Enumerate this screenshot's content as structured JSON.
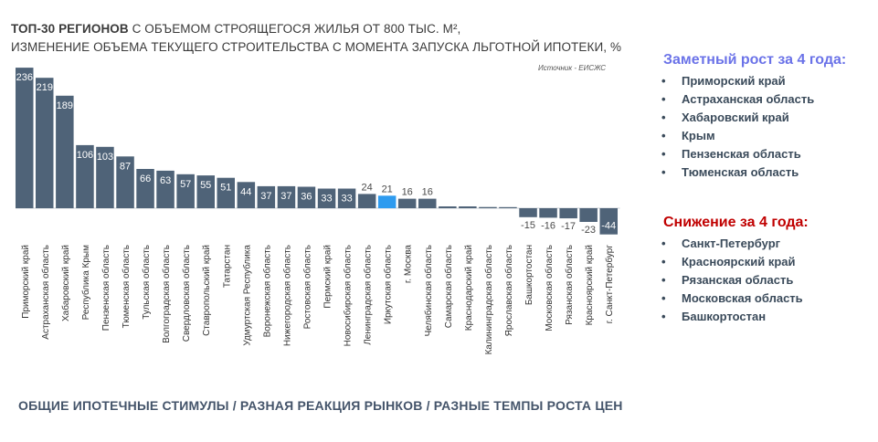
{
  "title": {
    "line1_bold": "ТОП-30 РЕГИОНОВ",
    "line1_rest": " С ОБЪЕМОМ СТРОЯЩЕГОСЯ ЖИЛЬЯ ОТ 800 ТЫС. М²,",
    "line2": "ИЗМЕНЕНИЕ ОБЪЕМА ТЕКУЩЕГО СТРОИТЕЛЬСТВА С МОМЕНТА ЗАПУСКА ЛЬГОТНОЙ ИПОТЕКИ, %"
  },
  "source": "Источник - ЕИСЖС",
  "chart_data": {
    "type": "bar",
    "categories": [
      "Приморский край",
      "Астраханская область",
      "Хабаровский край",
      "Республика Крым",
      "Пензенская область",
      "Тюменская область",
      "Тульская область",
      "Волгоградская область",
      "Свердловская область",
      "Ставропольский край",
      "Татарстан",
      "Удмуртская Республика",
      "Воронежская область",
      "Нижегородская область",
      "Ростовская область",
      "Пермский край",
      "Новосибирская область",
      "Ленинградская область",
      "Иркутская область",
      "г. Москва",
      "Челябинская область",
      "Самарская область",
      "Краснодарский край",
      "Калининградская область",
      "Ярославская область",
      "Башкортостан",
      "Московская область",
      "Рязанская область",
      "Красноярский край",
      "г. Санкт-Петербург"
    ],
    "values": [
      236,
      219,
      189,
      106,
      103,
      87,
      66,
      63,
      57,
      55,
      51,
      44,
      37,
      37,
      36,
      33,
      33,
      24,
      21,
      16,
      16,
      3,
      3,
      2,
      1,
      -15,
      -16,
      -17,
      -23,
      -44
    ],
    "labels": [
      "236",
      "219",
      "189",
      "106",
      "103",
      "87",
      "66",
      "63",
      "57",
      "55",
      "51",
      "44",
      "37",
      "37",
      "36",
      "33",
      "33",
      "24",
      "21",
      "16",
      "16",
      "",
      "",
      "",
      "",
      "-15",
      "-16",
      "-17",
      "-23",
      "-44"
    ],
    "highlight_index": 18,
    "colors": {
      "bar": "#4f6378",
      "highlight": "#2e9bef",
      "label_inside": "#ffffff",
      "label_outside": "#4a4a4a"
    },
    "title": "ТОП-30 РЕГИОНОВ С ОБЪЕМОМ СТРОЯЩЕГОСЯ ЖИЛЬЯ ОТ 800 ТЫС. М², ИЗМЕНЕНИЕ ОБЪЕМА ТЕКУЩЕГО СТРОИТЕЛЬСТВА С МОМЕНТА ЗАПУСКА ЛЬГОТНОЙ ИПОТЕКИ, %",
    "xlabel": "",
    "ylabel": "",
    "ylim": [
      -44,
      236
    ],
    "grid": false
  },
  "growth": {
    "title": "Заметный рост за 4 года:",
    "items": [
      "Приморский край",
      "Астраханская область",
      "Хабаровский край",
      "Крым",
      "Пензенская область",
      "Тюменская область"
    ]
  },
  "decline": {
    "title": "Снижение за 4 года:",
    "items": [
      "Санкт-Петербург",
      "Красноярский край",
      "Рязанская область",
      "Московская область",
      "Башкортостан"
    ]
  },
  "footer": "ОБЩИЕ ИПОТЕЧНЫЕ СТИМУЛЫ / РАЗНАЯ РЕАКЦИЯ РЫНКОВ / РАЗНЫЕ ТЕМПЫ РОСТА ЦЕН",
  "bullet": "•"
}
